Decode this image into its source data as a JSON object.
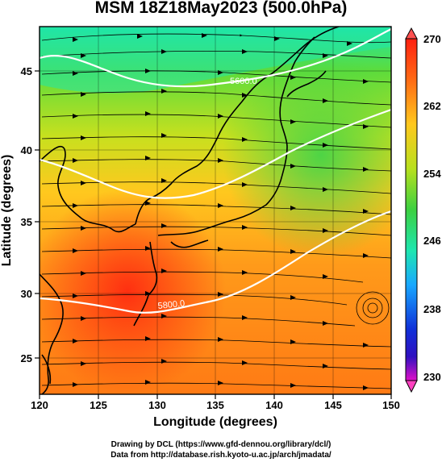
{
  "title": "MSM 18Z18May2023 (500.0hPa)",
  "xlabel": "Longitude (degrees)",
  "ylabel": "Latitude  (degrees)",
  "xticks": [
    "120",
    "125",
    "130",
    "135",
    "140",
    "145",
    "150"
  ],
  "yticks": [
    "25",
    "30",
    "35",
    "40",
    "45"
  ],
  "colorbar_ticks": [
    "270",
    "262",
    "254",
    "246",
    "238",
    "230"
  ],
  "contour_labels": [
    "5600.0",
    "5800.0"
  ],
  "credits": {
    "line1": "Drawing by DCL (https://www.gfd-dennou.org/library/dcl/)",
    "line2": "Data from http://database.rish.kyoto-u.ac.jp/arch/jmadata/"
  },
  "colors": {
    "warm": "#ff3010",
    "orange": "#ff8c1a",
    "yellow": "#ffd21e",
    "green": "#4fd13c",
    "cyan": "#1ee6a8"
  },
  "map_data": {
    "extent": {
      "lon": [
        120,
        150
      ],
      "lat": [
        22.5,
        48
      ]
    },
    "colorbar_range": [
      230,
      270
    ],
    "variable": "temperature (K), geopotential height contours, wind streamlines"
  }
}
